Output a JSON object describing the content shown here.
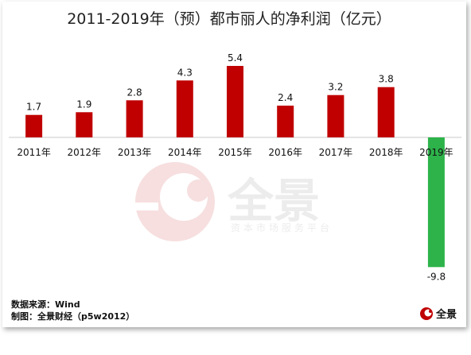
{
  "chart_data": {
    "type": "bar",
    "title": "2011-2019年（预）都市丽人的净利润（亿元）",
    "categories": [
      "2011年",
      "2012年",
      "2013年",
      "2014年",
      "2015年",
      "2016年",
      "2017年",
      "2018年",
      "2019年"
    ],
    "values": [
      1.7,
      1.9,
      2.8,
      4.3,
      5.4,
      2.4,
      3.2,
      3.8,
      -9.8
    ],
    "data_labels": [
      "1.7",
      "1.9",
      "2.8",
      "4.3",
      "5.4",
      "2.4",
      "3.2",
      "3.8",
      "-9.8"
    ],
    "ylim": [
      -9.8,
      5.4
    ],
    "grid": false,
    "colors": {
      "positive": "#c00000",
      "negative": "#2db34a"
    }
  },
  "footer": {
    "source": "数据来源：Wind",
    "maker": "制图：全景财经（p5w2012）"
  },
  "watermark": {
    "brand": "全景",
    "tagline": "资本市场服务平台"
  },
  "logo": {
    "text": "全景"
  }
}
